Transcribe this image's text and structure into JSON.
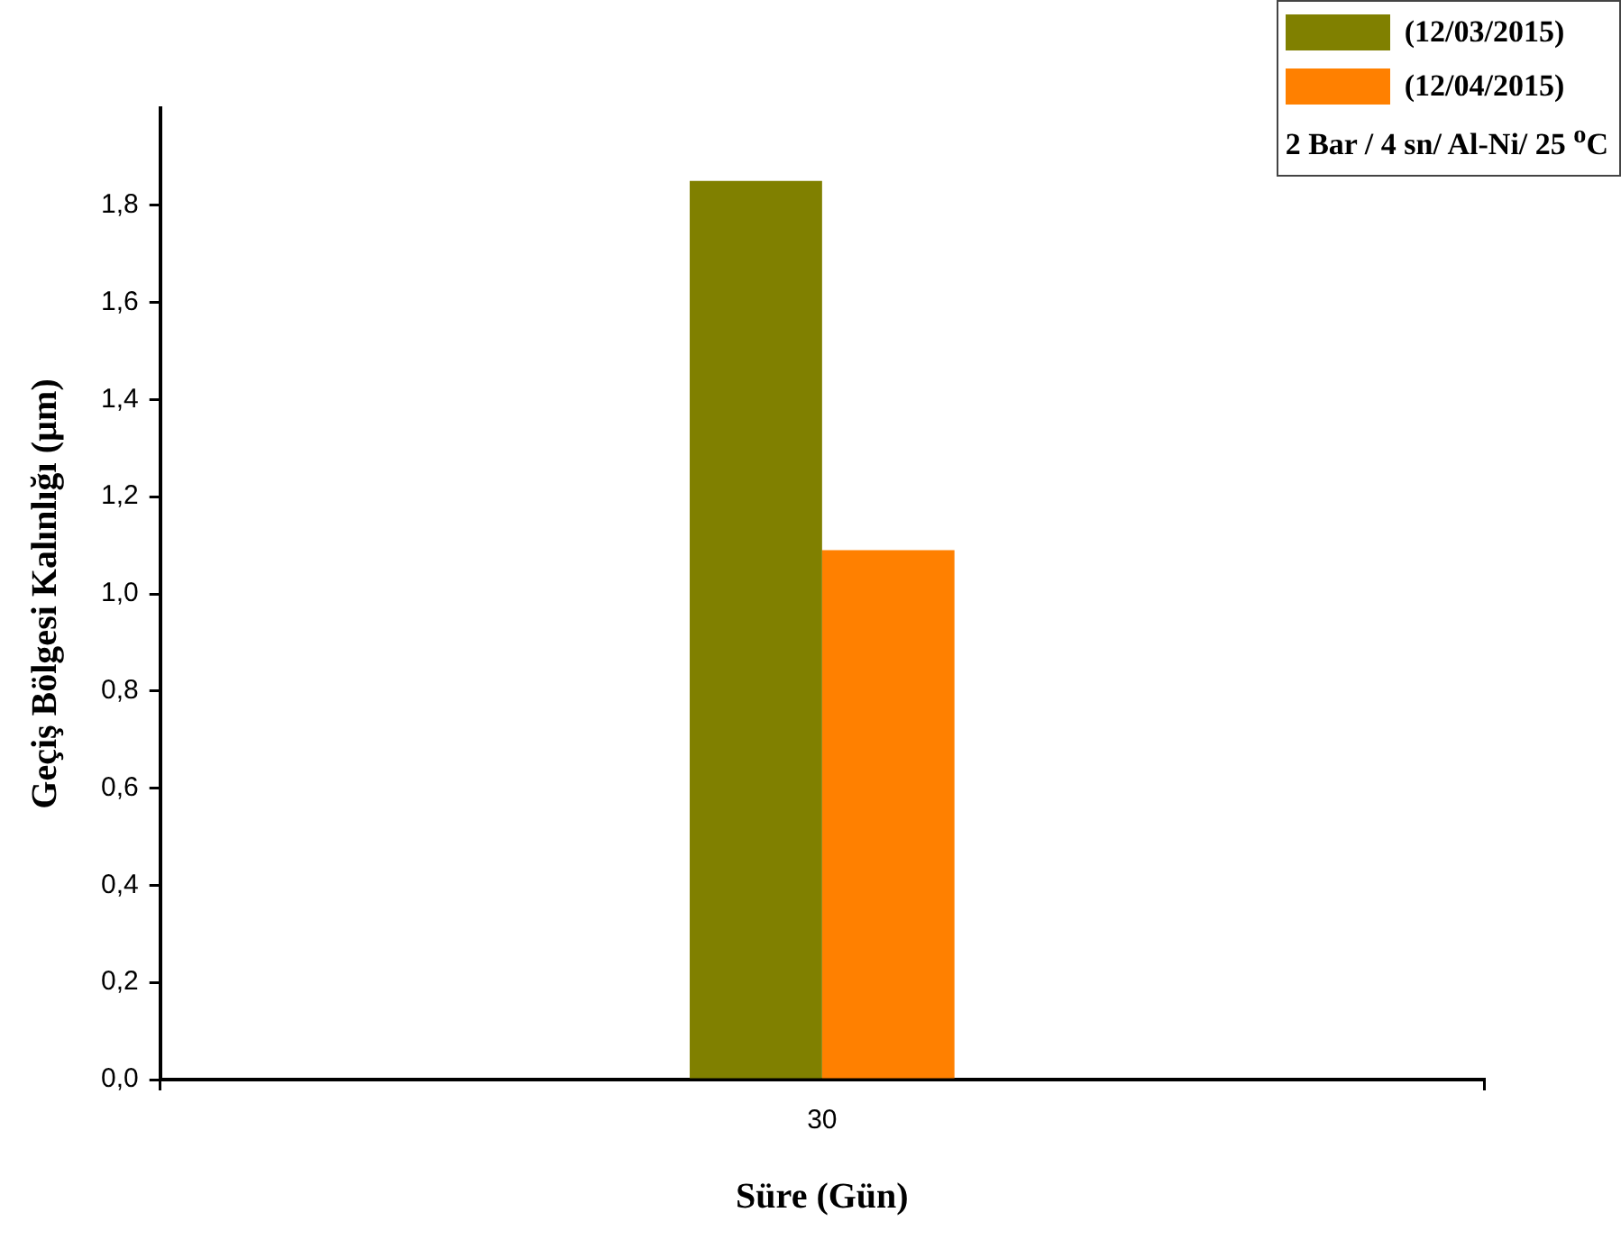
{
  "chart_data": {
    "type": "bar",
    "xlabel": "Süre (Gün)",
    "ylabel": "Geçiş Bölgesi Kalınlığı (µm)",
    "legend_title": "2 Bar / 4 sn/ Al-Ni/ 25 $^{o}$C",
    "categories": [
      "30"
    ],
    "series": [
      {
        "name": "(12/03/2015)",
        "color": "#808000",
        "values": [
          1.85
        ]
      },
      {
        "name": "(12/04/2015)",
        "color": "#ff8000",
        "values": [
          1.09
        ]
      }
    ],
    "ylim": [
      0,
      2
    ],
    "yticks": [
      {
        "value": 0,
        "label": "0,0"
      },
      {
        "value": 0.2,
        "label": "0,2"
      },
      {
        "value": 0.4,
        "label": "0,4"
      },
      {
        "value": 0.6,
        "label": "0,6"
      },
      {
        "value": 0.8,
        "label": "0,8"
      },
      {
        "value": 1,
        "label": "1,0"
      },
      {
        "value": 1.2,
        "label": "1,2"
      },
      {
        "value": 1.4,
        "label": "1,4"
      },
      {
        "value": 1.6,
        "label": "1,6"
      },
      {
        "value": 1.8,
        "label": "1,8"
      }
    ],
    "grid": false,
    "legend": "top right"
  }
}
